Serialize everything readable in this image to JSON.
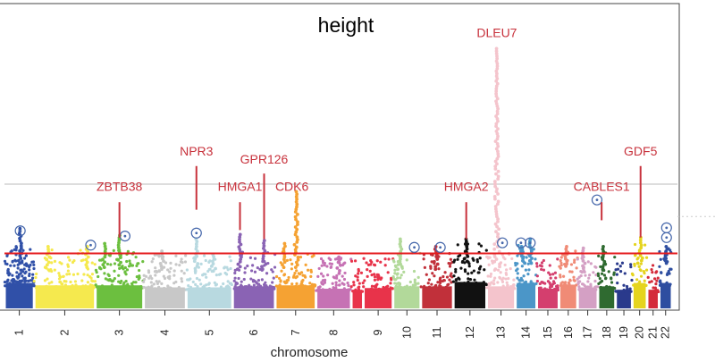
{
  "chart_data": {
    "type": "scatter",
    "subtype": "manhattan",
    "title": "height",
    "xlabel": "chromosome",
    "ylabel": "",
    "colors": {
      "significance_line": "#e41a1c",
      "suggestive_line": "#bbbbbb",
      "gene_label": "#c8323c",
      "circle_marker": "#4466aa"
    },
    "chromosomes": [
      {
        "label": "1",
        "color": "#3050a8",
        "start": 0.0,
        "end": 3.2,
        "show_tick": true,
        "baseline": 7.5,
        "cloud_density": 60
      },
      {
        "label": "2",
        "color": "#f5e94e",
        "start": 3.2,
        "end": 9.8,
        "show_tick": true,
        "baseline": 6.8,
        "cloud_density": 50
      },
      {
        "label": "3",
        "color": "#6cbf3f",
        "start": 9.8,
        "end": 15.0,
        "show_tick": true,
        "baseline": 6.8,
        "cloud_density": 45
      },
      {
        "label": "4",
        "color": "#c8c8c8",
        "start": 15.0,
        "end": 19.6,
        "show_tick": true,
        "baseline": 6.2,
        "cloud_density": 40
      },
      {
        "label": "5",
        "color": "#b8d9e0",
        "start": 19.6,
        "end": 24.6,
        "show_tick": true,
        "baseline": 6.2,
        "cloud_density": 40
      },
      {
        "label": "6",
        "color": "#8a63b4",
        "start": 24.6,
        "end": 29.2,
        "show_tick": true,
        "baseline": 6.5,
        "cloud_density": 40
      },
      {
        "label": "7",
        "color": "#f5a233",
        "start": 29.2,
        "end": 33.6,
        "show_tick": true,
        "baseline": 6.8,
        "cloud_density": 35
      },
      {
        "label": "8",
        "color": "#c672b4",
        "start": 33.6,
        "end": 37.4,
        "show_tick": true,
        "baseline": 5.8,
        "cloud_density": 35
      },
      {
        "label": "",
        "color": "#e8334a",
        "start": 37.4,
        "end": 38.7,
        "show_tick": false,
        "baseline": 5.5,
        "cloud_density": 12
      },
      {
        "label": "9",
        "color": "#e8334a",
        "start": 38.7,
        "end": 41.9,
        "show_tick": true,
        "baseline": 6.0,
        "cloud_density": 30
      },
      {
        "label": "10",
        "color": "#b2d99a",
        "start": 41.9,
        "end": 44.9,
        "show_tick": true,
        "baseline": 6.5,
        "cloud_density": 30
      },
      {
        "label": "11",
        "color": "#c1303a",
        "start": 44.9,
        "end": 48.4,
        "show_tick": true,
        "baseline": 6.5,
        "cloud_density": 30
      },
      {
        "label": "12",
        "color": "#111111",
        "start": 48.4,
        "end": 52.0,
        "show_tick": true,
        "baseline": 7.8,
        "cloud_density": 30
      },
      {
        "label": "13",
        "color": "#f4c4cc",
        "start": 52.0,
        "end": 55.1,
        "show_tick": true,
        "baseline": 6.5,
        "cloud_density": 28
      },
      {
        "label": "14",
        "color": "#4b96c8",
        "start": 55.1,
        "end": 57.4,
        "show_tick": true,
        "baseline": 7.5,
        "cloud_density": 22
      },
      {
        "label": "15",
        "color": "#d43f6e",
        "start": 57.4,
        "end": 59.8,
        "show_tick": true,
        "baseline": 5.8,
        "cloud_density": 22
      },
      {
        "label": "16",
        "color": "#f08b76",
        "start": 59.8,
        "end": 61.8,
        "show_tick": true,
        "baseline": 7.0,
        "cloud_density": 20
      },
      {
        "label": "17",
        "color": "#d4a0c4",
        "start": 61.8,
        "end": 64.0,
        "show_tick": true,
        "baseline": 6.2,
        "cloud_density": 20
      },
      {
        "label": "18",
        "color": "#2f6a30",
        "start": 64.0,
        "end": 65.9,
        "show_tick": true,
        "baseline": 6.5,
        "cloud_density": 18
      },
      {
        "label": "19",
        "color": "#2a3a8c",
        "start": 65.9,
        "end": 67.7,
        "show_tick": true,
        "baseline": 5.5,
        "cloud_density": 16
      },
      {
        "label": "20",
        "color": "#e5d41e",
        "start": 67.7,
        "end": 69.3,
        "show_tick": true,
        "baseline": 7.5,
        "cloud_density": 16
      },
      {
        "label": "21",
        "color": "#d42b3a",
        "start": 69.3,
        "end": 70.6,
        "show_tick": true,
        "baseline": 5.5,
        "cloud_density": 12
      },
      {
        "label": "22",
        "color": "#2e4ea0",
        "start": 70.6,
        "end": 72.0,
        "show_tick": true,
        "baseline": 7.5,
        "cloud_density": 14
      }
    ],
    "peaks": [
      {
        "chrom": "1",
        "pos": 1.7,
        "top": 10.6
      },
      {
        "chrom": "2",
        "pos": 4.7,
        "top": 8.2
      },
      {
        "chrom": "2",
        "pos": 8.9,
        "top": 8.2
      },
      {
        "chrom": "3",
        "pos": 12.4,
        "top": 9.7
      },
      {
        "chrom": "3",
        "pos": 10.8,
        "top": 8.6
      },
      {
        "chrom": "4",
        "pos": 17.0,
        "top": 7.6
      },
      {
        "chrom": "5",
        "pos": 20.7,
        "top": 9.2
      },
      {
        "chrom": "5",
        "pos": 22.5,
        "top": 7.2
      },
      {
        "chrom": "6",
        "pos": 25.4,
        "top": 9.8
      },
      {
        "chrom": "6",
        "pos": 28.0,
        "top": 9.0
      },
      {
        "chrom": "7",
        "pos": 31.5,
        "top": 15.5
      },
      {
        "chrom": "7",
        "pos": 30.2,
        "top": 8.6
      },
      {
        "chrom": "8",
        "pos": 36.1,
        "top": 6.8
      },
      {
        "chrom": "10",
        "pos": 42.7,
        "top": 9.2
      },
      {
        "chrom": "11",
        "pos": 46.5,
        "top": 8.2
      },
      {
        "chrom": "12",
        "pos": 49.8,
        "top": 9.2
      },
      {
        "chrom": "13",
        "pos": 53.1,
        "top": 34.5
      },
      {
        "chrom": "14",
        "pos": 55.8,
        "top": 8.2
      },
      {
        "chrom": "14",
        "pos": 56.7,
        "top": 9.2
      },
      {
        "chrom": "16",
        "pos": 60.6,
        "top": 8.2
      },
      {
        "chrom": "17",
        "pos": 62.4,
        "top": 8.0
      },
      {
        "chrom": "18",
        "pos": 64.6,
        "top": 8.2
      },
      {
        "chrom": "20",
        "pos": 68.6,
        "top": 9.4
      },
      {
        "chrom": "22",
        "pos": 71.4,
        "top": 8.2
      }
    ],
    "circle_markers": [
      {
        "pos": 1.7,
        "value": 10.3
      },
      {
        "pos": 9.3,
        "value": 8.4
      },
      {
        "pos": 13.0,
        "value": 9.6
      },
      {
        "pos": 20.7,
        "value": 10.0
      },
      {
        "pos": 44.2,
        "value": 8.1
      },
      {
        "pos": 47.0,
        "value": 8.1
      },
      {
        "pos": 53.7,
        "value": 8.7
      },
      {
        "pos": 55.7,
        "value": 8.7
      },
      {
        "pos": 56.7,
        "value": 8.7
      },
      {
        "pos": 63.9,
        "value": 14.4
      },
      {
        "pos": 71.4,
        "value": 10.7
      },
      {
        "pos": 71.4,
        "value": 9.4
      }
    ],
    "gene_labels": [
      {
        "label": "ZBTB38",
        "pos": 12.4,
        "label_y": 15.6,
        "line_top": 14.1,
        "line_bottom": 9.4
      },
      {
        "label": "NPR3",
        "pos": 20.7,
        "label_y": 20.3,
        "line_top": 18.9,
        "line_bottom": 13.1
      },
      {
        "label": "HMGA1",
        "pos": 25.4,
        "label_y": 15.6,
        "line_top": 14.1,
        "line_bottom": 10.4
      },
      {
        "label": "GPR126",
        "pos": 28.0,
        "label_y": 19.2,
        "line_top": 17.9,
        "line_bottom": 9.2
      },
      {
        "label": "CDK6",
        "pos": 31.0,
        "label_y": 15.6,
        "line_top": null,
        "line_bottom": null
      },
      {
        "label": "DLEU7",
        "pos": 53.1,
        "label_y": 36.0,
        "line_top": null,
        "line_bottom": null
      },
      {
        "label": "HMGA2",
        "pos": 49.8,
        "label_y": 15.6,
        "line_top": 14.1,
        "line_bottom": 9.2
      },
      {
        "label": "CABLES1",
        "pos": 64.4,
        "label_y": 15.6,
        "line_top": 14.1,
        "line_bottom": 11.7
      },
      {
        "label": "GDF5",
        "pos": 68.6,
        "label_y": 20.3,
        "line_top": 18.9,
        "line_bottom": 9.4
      }
    ],
    "significance_threshold": 7.3,
    "suggestive_threshold": 16.5,
    "xlim": [
      0,
      72.0
    ],
    "ylim": [
      0,
      40
    ],
    "grid": false
  }
}
